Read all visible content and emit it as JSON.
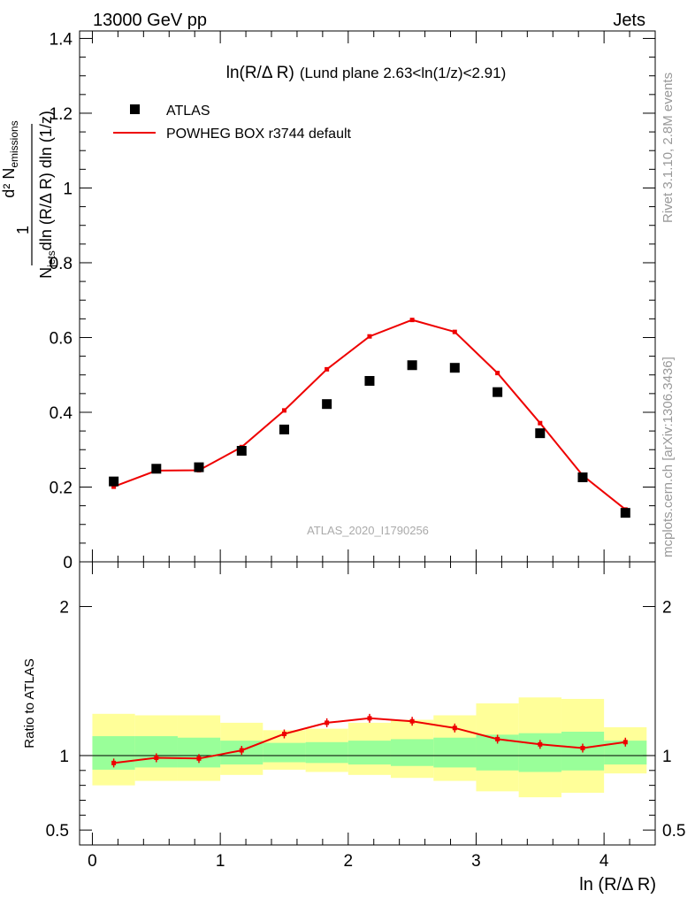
{
  "header": {
    "energy": "13000 GeV pp",
    "process": "Jets"
  },
  "side_text": {
    "rivet": "Rivet 3.1.10,  2.8M events",
    "mcplots": "mcplots.cern.ch [arXiv:1306.3436]"
  },
  "plot": {
    "title_main": "ln(R/Δ R)",
    "title_sub": "(Lund plane 2.63<ln(1/z)<2.91)",
    "watermark": "ATLAS_2020_I1790256",
    "xlabel": "ln (R/Δ R)",
    "ylabel": "d² N_emissions / (N_jets dln (R/Δ R) dln (1/z))",
    "ratio_ylabel": "Ratio to ATLAS"
  },
  "chart_data": [
    {
      "type": "scatter",
      "xlim": [
        -0.1,
        4.4
      ],
      "ylim": [
        0,
        1.42
      ],
      "yticks": [
        0,
        0.2,
        0.4,
        0.6,
        0.8,
        1,
        1.2,
        1.4
      ],
      "ytick_labels": [
        "0",
        "0.2",
        "0.4",
        "0.6",
        "0.8",
        "1",
        "1.2",
        "1.4"
      ],
      "legend_position": "top-left",
      "x": [
        0.167,
        0.5,
        0.833,
        1.167,
        1.5,
        1.833,
        2.167,
        2.5,
        2.833,
        3.167,
        3.5,
        3.833,
        4.167
      ],
      "series": [
        {
          "name": "ATLAS",
          "style": "marker",
          "color": "#000000",
          "values": [
            0.215,
            0.249,
            0.253,
            0.297,
            0.354,
            0.422,
            0.484,
            0.526,
            0.519,
            0.454,
            0.344,
            0.226,
            0.131
          ]
        },
        {
          "name": "POWHEG BOX r3744 default",
          "style": "line",
          "color": "#ee0000",
          "values": [
            0.201,
            0.244,
            0.245,
            0.307,
            0.405,
            0.515,
            0.603,
            0.647,
            0.615,
            0.505,
            0.371,
            0.231,
            0.14
          ]
        }
      ]
    },
    {
      "type": "line",
      "ylabel": "Ratio to ATLAS",
      "xlim": [
        -0.1,
        4.4
      ],
      "ylim": [
        0.4,
        2.3
      ],
      "xticks": [
        0,
        1,
        2,
        3,
        4
      ],
      "xtick_labels": [
        "0",
        "1",
        "2",
        "3",
        "4"
      ],
      "yticks": [
        0.5,
        1,
        2
      ],
      "ytick_labels": [
        "0.5",
        "1",
        "2"
      ],
      "x": [
        0.167,
        0.5,
        0.833,
        1.167,
        1.5,
        1.833,
        2.167,
        2.5,
        2.833,
        3.167,
        3.5,
        3.833,
        4.167
      ],
      "band_edges": [
        0,
        0.333,
        0.667,
        1.0,
        1.333,
        1.667,
        2.0,
        2.333,
        2.667,
        3.0,
        3.333,
        3.667,
        4.0,
        4.333
      ],
      "bands": {
        "green": {
          "color": "#99ff99",
          "low": [
            0.905,
            0.92,
            0.92,
            0.94,
            0.955,
            0.95,
            0.94,
            0.93,
            0.92,
            0.9,
            0.89,
            0.9,
            0.94
          ],
          "high": [
            1.13,
            1.13,
            1.12,
            1.1,
            1.085,
            1.09,
            1.1,
            1.11,
            1.12,
            1.14,
            1.15,
            1.16,
            1.1
          ]
        },
        "yellow": {
          "color": "#ffff99",
          "low": [
            0.8,
            0.83,
            0.83,
            0.87,
            0.905,
            0.89,
            0.87,
            0.85,
            0.83,
            0.76,
            0.72,
            0.75,
            0.88
          ],
          "high": [
            1.28,
            1.27,
            1.27,
            1.22,
            1.17,
            1.18,
            1.22,
            1.24,
            1.27,
            1.35,
            1.39,
            1.38,
            1.19
          ]
        }
      },
      "series": [
        {
          "name": "POWHEG BOX r3744 default",
          "color": "#ee0000",
          "values": [
            0.95,
            0.985,
            0.98,
            1.035,
            1.145,
            1.22,
            1.25,
            1.23,
            1.185,
            1.11,
            1.075,
            1.05,
            1.09
          ]
        }
      ]
    }
  ]
}
